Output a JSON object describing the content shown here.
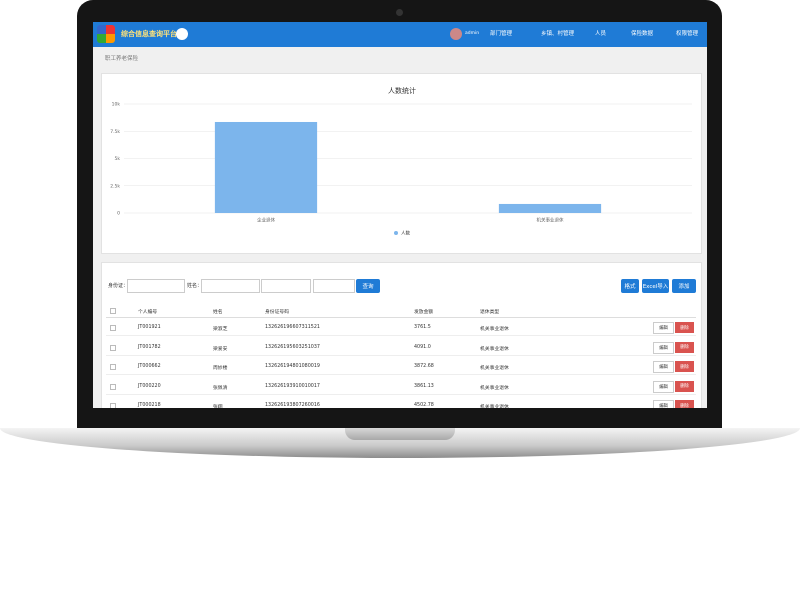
{
  "brand": "综合信息查询平台",
  "user": "admin",
  "nav": [
    "部门管理",
    "乡镇、村管理",
    "人员",
    "保险数据",
    "权限管理"
  ],
  "breadcrumb": "职工养老保险",
  "chart_data": {
    "type": "bar",
    "title": "人数统计",
    "categories": [
      "企业退休",
      "机关事业退休"
    ],
    "series": [
      {
        "name": "人数",
        "color": "#7cb5ec",
        "values": [
          8350,
          830
        ]
      }
    ],
    "ylim": [
      0,
      10000
    ],
    "yticks": [
      0,
      {
        "value": 2500,
        "label": "2.5k"
      },
      {
        "value": 5000,
        "label": "5k"
      },
      {
        "value": 7500,
        "label": "7.5k"
      },
      {
        "value": 10000,
        "label": "10k"
      }
    ],
    "grid": true
  },
  "search": {
    "id_label": "身份证：",
    "name_label": "姓名：",
    "button": "查询"
  },
  "actions": [
    "格式",
    "Excel导入",
    "添加"
  ],
  "table": {
    "headers": [
      "个人编号",
      "姓名",
      "身份证号码",
      "发放金额",
      "退休类型"
    ],
    "rows": [
      [
        "JT001921",
        "梁淑芝",
        "132626196607311521",
        "3761.5",
        "机关事业退休"
      ],
      [
        "JT001782",
        "梁爱安",
        "132626195603251037",
        "4091.0",
        "机关事业退休"
      ],
      [
        "JT000662",
        "周妙楼",
        "132626194801080019",
        "3872.68",
        "机关事业退休"
      ],
      [
        "JT000220",
        "张佩清",
        "132626193910010017",
        "3861.13",
        "机关事业退休"
      ],
      [
        "JT000218",
        "张翔",
        "132626193807260016",
        "4502.78",
        "机关事业退休"
      ]
    ]
  },
  "row_actions": [
    "编辑",
    "删除"
  ]
}
